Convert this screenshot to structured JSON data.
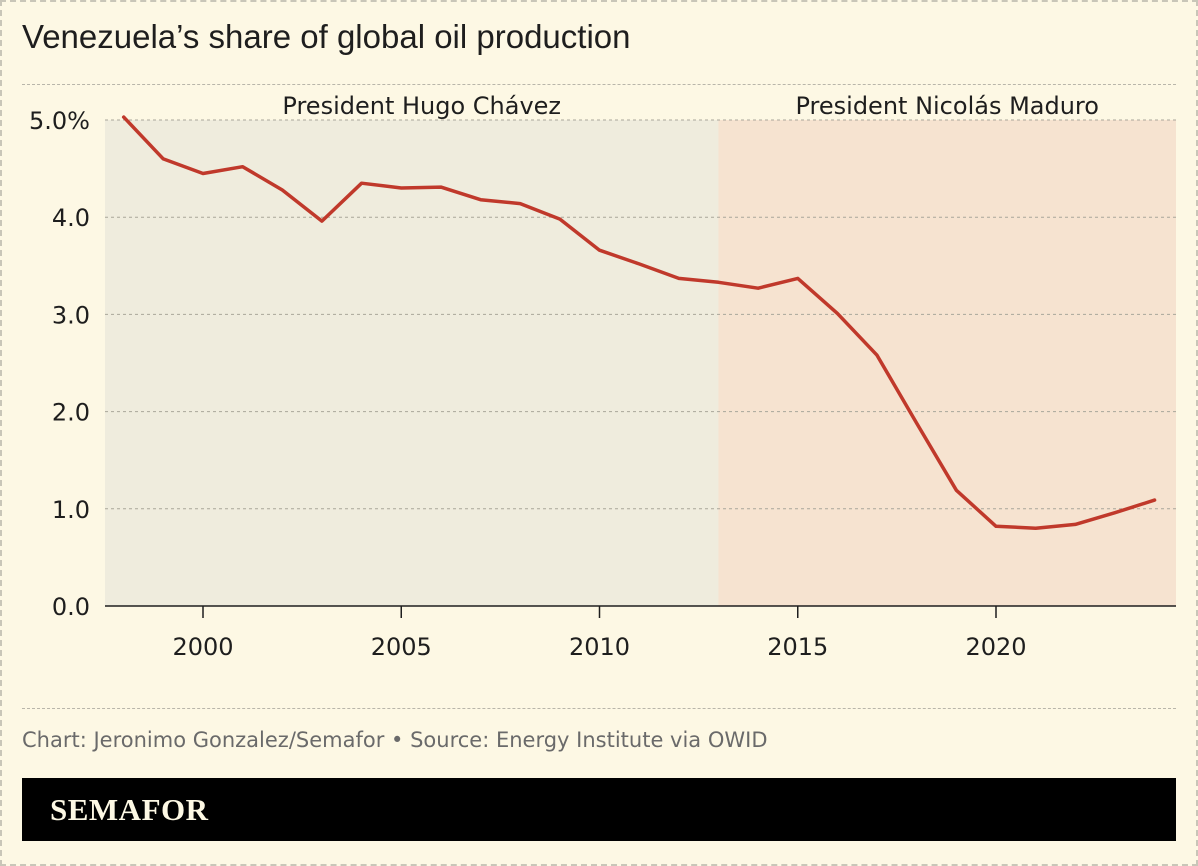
{
  "title": "Venezuela’s share of global oil production",
  "footer": {
    "credit": "Chart: Jeronimo Gonzalez/Semafor • Source: Energy Institute via OWID",
    "brand": "SEMAFOR"
  },
  "colors": {
    "background": "#fdf8e4",
    "line": "#c0392b",
    "chavez_band": "#efecdd",
    "maduro_band": "#f6e3d0",
    "brandbar": "#000000"
  },
  "chart_data": {
    "type": "line",
    "title": "Venezuela’s share of global oil production",
    "xlabel": "",
    "ylabel": "",
    "xlim": [
      1997.5,
      2024.8
    ],
    "ylim": [
      0,
      5
    ],
    "x_ticks": [
      {
        "value": 2000,
        "label": "2000"
      },
      {
        "value": 2005,
        "label": "2005"
      },
      {
        "value": 2010,
        "label": "2010"
      },
      {
        "value": 2015,
        "label": "2015"
      },
      {
        "value": 2020,
        "label": "2020"
      }
    ],
    "y_ticks": [
      {
        "value": 0,
        "label": "0.0"
      },
      {
        "value": 1,
        "label": "1.0"
      },
      {
        "value": 2,
        "label": "2.0"
      },
      {
        "value": 3,
        "label": "3.0"
      },
      {
        "value": 4,
        "label": "4.0"
      },
      {
        "value": 5,
        "label": "5.0%"
      }
    ],
    "grid": "horizontal",
    "periods": [
      {
        "label": "President Hugo Chávez",
        "start": 1997.5,
        "end": 2013
      },
      {
        "label": "President Nicolás Maduro",
        "start": 2013,
        "end": 2024.8
      }
    ],
    "series": [
      {
        "x": [
          1998,
          1999,
          2000,
          2001,
          2002,
          2003,
          2004,
          2005,
          2006,
          2007,
          2008,
          2009,
          2010,
          2011,
          2012,
          2013,
          2014,
          2015,
          2016,
          2017,
          2018,
          2019,
          2020,
          2021,
          2022,
          2023,
          2024
        ],
        "values": [
          5.03,
          4.6,
          4.45,
          4.52,
          4.28,
          3.96,
          4.35,
          4.3,
          4.31,
          4.18,
          4.14,
          3.98,
          3.66,
          3.52,
          3.37,
          3.33,
          3.27,
          3.37,
          3.01,
          2.58,
          1.88,
          1.19,
          0.82,
          0.8,
          0.84,
          0.96,
          1.09
        ]
      }
    ]
  }
}
